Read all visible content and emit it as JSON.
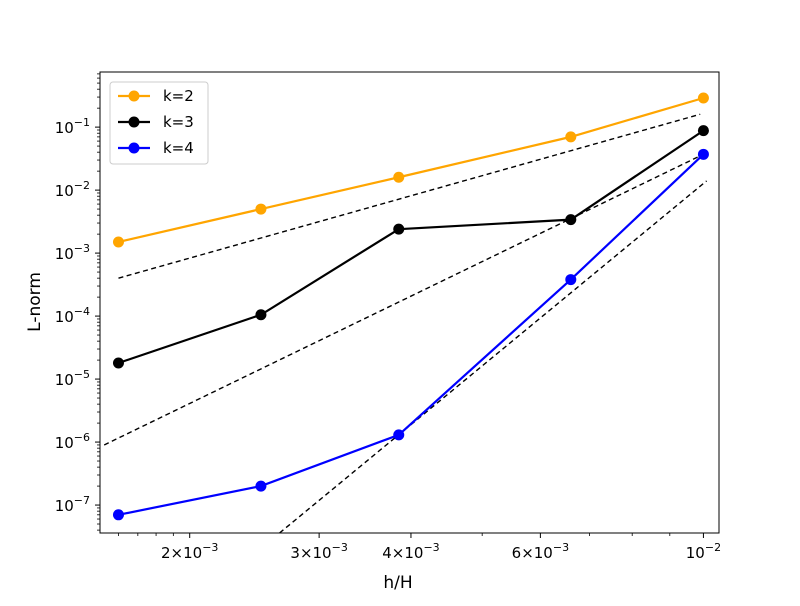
{
  "chart_data": {
    "type": "line",
    "xscale": "log",
    "yscale": "log",
    "xlabel": "h/H",
    "ylabel": "L-norm",
    "title": "",
    "xlim": [
      0.00151,
      0.0105
    ],
    "ylim": [
      3.6e-08,
      0.75
    ],
    "legend_position": "top-left",
    "x_ticks": [
      {
        "value": 0.002,
        "mant": "2",
        "exp": "−3"
      },
      {
        "value": 0.003,
        "mant": "3",
        "exp": "−3"
      },
      {
        "value": 0.004,
        "mant": "4",
        "exp": "−3"
      },
      {
        "value": 0.006,
        "mant": "6",
        "exp": "−3"
      },
      {
        "value": 0.01,
        "mant": "10",
        "exp": "−2"
      }
    ],
    "y_ticks": [
      {
        "value": 1e-07,
        "mant": "10",
        "exp": "−7"
      },
      {
        "value": 1e-06,
        "mant": "10",
        "exp": "−6"
      },
      {
        "value": 1e-05,
        "mant": "10",
        "exp": "−5"
      },
      {
        "value": 0.0001,
        "mant": "10",
        "exp": "−4"
      },
      {
        "value": 0.001,
        "mant": "10",
        "exp": "−3"
      },
      {
        "value": 0.01,
        "mant": "10",
        "exp": "−2"
      },
      {
        "value": 0.1,
        "mant": "10",
        "exp": "−1"
      }
    ],
    "series": [
      {
        "name": "k=2",
        "color": "#ffa500",
        "x": [
          0.0016,
          0.0025,
          0.00385,
          0.0066,
          0.01
        ],
        "y": [
          0.0015,
          0.005,
          0.016,
          0.07,
          0.29
        ]
      },
      {
        "name": "k=3",
        "color": "#000000",
        "x": [
          0.0016,
          0.0025,
          0.00385,
          0.0066,
          0.01
        ],
        "y": [
          1.8e-05,
          0.000105,
          0.0024,
          0.0034,
          0.088
        ]
      },
      {
        "name": "k=4",
        "color": "#0000ff",
        "x": [
          0.0016,
          0.0025,
          0.00385,
          0.0066,
          0.01
        ],
        "y": [
          7e-08,
          2e-07,
          1.3e-06,
          0.00038,
          0.037
        ]
      }
    ],
    "reference_lines": [
      {
        "style": "dashed",
        "color": "#000000",
        "x": [
          0.0016,
          0.0099
        ],
        "y": [
          0.0004,
          0.16
        ]
      },
      {
        "style": "dashed",
        "color": "#000000",
        "x": [
          0.00153,
          0.0099
        ],
        "y": [
          9e-07,
          0.035
        ]
      },
      {
        "style": "dashed",
        "color": "#000000",
        "x": [
          0.00265,
          0.0101
        ],
        "y": [
          3.6e-08,
          0.014
        ]
      }
    ]
  }
}
